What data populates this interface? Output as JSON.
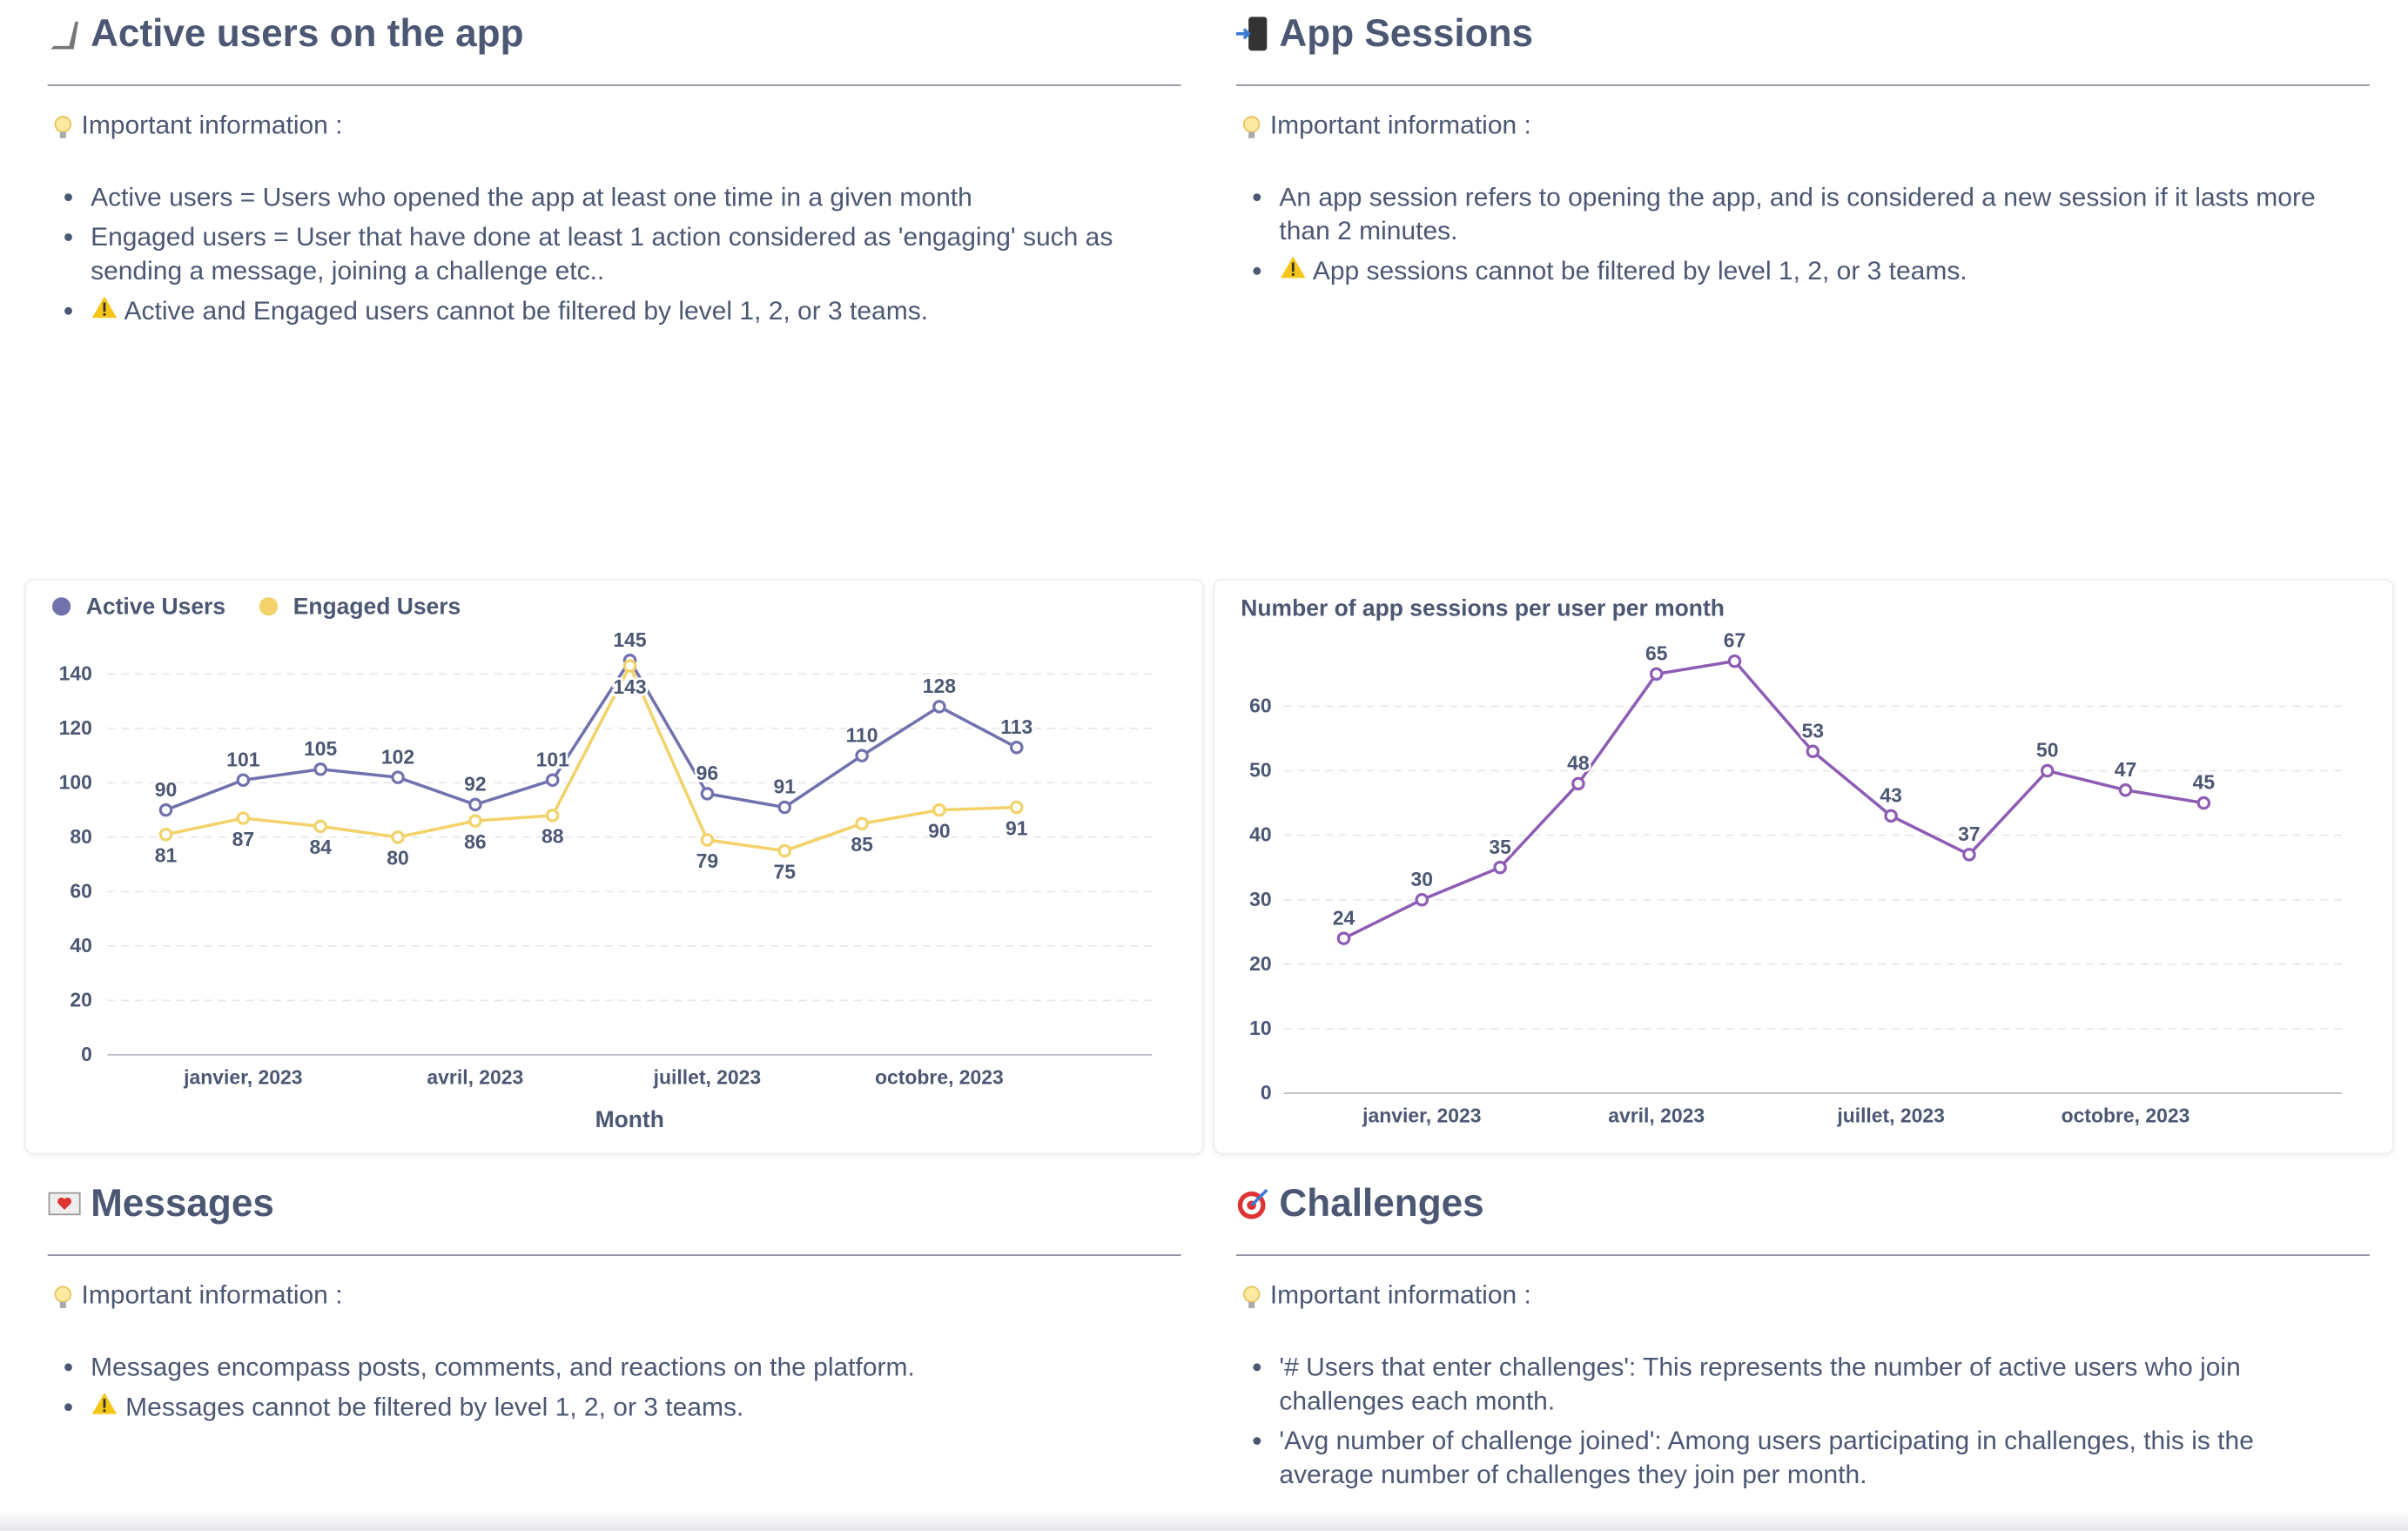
{
  "sections": [
    {
      "title": "Active users on the app",
      "info_label": "Important information :",
      "bullets": [
        "Active users = Users who opened the app at least one time in a given month",
        "Engaged users = User that have done at least 1 action considered as 'engaging' such as sending a message, joining a challenge etc..",
        "Active and Engaged users cannot be filtered by level 1, 2, or 3 teams."
      ]
    },
    {
      "title": "App Sessions",
      "info_label": "Important information :",
      "bullets": [
        "An app session refers to opening the app, and is considered a new session if it lasts more than 2 minutes.",
        "App sessions cannot be filtered by level 1, 2, or 3 teams."
      ]
    },
    {
      "title": "Messages",
      "info_label": "Important information :",
      "bullets": [
        "Messages encompass posts, comments, and reactions on the platform.",
        "Messages cannot be filtered by level 1, 2, or 3 teams."
      ]
    },
    {
      "title": "Challenges",
      "info_label": "Important information :",
      "bullets": [
        "'# Users that enter challenges': This represents the number of active users who join challenges each month.",
        "'Avg number of challenge joined': Among users participating in challenges, this is the average number of challenges they join per month."
      ]
    }
  ],
  "chart_data": [
    {
      "type": "line",
      "x_label": "Month",
      "legend": "top-left",
      "grid": true,
      "categories": [
        null,
        "janvier, 2023",
        null,
        null,
        "avril, 2023",
        null,
        null,
        "juillet, 2023",
        null,
        null,
        "octobre, 2023",
        null
      ],
      "series": [
        {
          "name": "Active Users",
          "color": "#7172ad",
          "values": [
            90,
            101,
            105,
            102,
            92,
            101,
            145,
            96,
            91,
            110,
            128,
            113
          ]
        },
        {
          "name": "Engaged Users",
          "color": "#f2d269",
          "values": [
            81,
            87,
            84,
            80,
            86,
            88,
            143,
            79,
            75,
            85,
            90,
            91
          ]
        }
      ],
      "ylim": [
        0,
        150
      ],
      "yticks": [
        0,
        20,
        40,
        60,
        80,
        100,
        120,
        140
      ]
    },
    {
      "type": "line",
      "title": "Number of app sessions per user per month",
      "grid": true,
      "categories": [
        null,
        "janvier, 2023",
        null,
        null,
        "avril, 2023",
        null,
        null,
        "juillet, 2023",
        null,
        null,
        "octobre, 2023",
        null
      ],
      "series": [
        {
          "color": "#8e5cb3",
          "values": [
            24,
            30,
            35,
            48,
            65,
            67,
            53,
            43,
            37,
            50,
            47,
            45
          ]
        }
      ],
      "ylim": [
        0,
        70
      ],
      "yticks": [
        0,
        10,
        20,
        30,
        40,
        50,
        60
      ]
    }
  ]
}
